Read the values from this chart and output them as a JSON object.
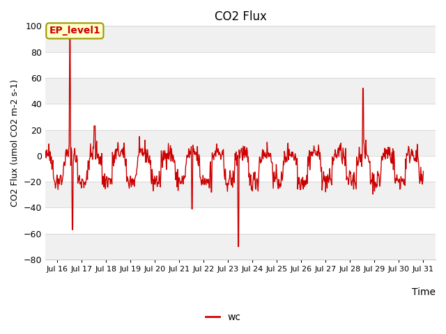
{
  "title": "CO2 Flux",
  "ylabel": "CO2 Flux (umol CO2 m-2 s-1)",
  "xlabel": "Time",
  "ylim": [
    -80,
    100
  ],
  "line_color": "#cc0000",
  "line_width": 1.0,
  "bg_color": "#ffffff",
  "band_colors": [
    "#f0f0f0",
    "#ffffff"
  ],
  "legend_label": "wc",
  "annotation_text": "EP_level1",
  "annotation_box_color": "#ffffcc",
  "annotation_border_color": "#999900",
  "xtick_labels": [
    "Jul 16",
    "Jul 17",
    "Jul 18",
    "Jul 19",
    "Jul 20",
    "Jul 21",
    "Jul 22",
    "Jul 23",
    "Jul 24",
    "Jul 25",
    "Jul 26",
    "Jul 27",
    "Jul 28",
    "Jul 29",
    "Jul 30",
    "Jul 31"
  ],
  "ytick_values": [
    -80,
    -60,
    -40,
    -20,
    0,
    20,
    40,
    60,
    80,
    100
  ]
}
